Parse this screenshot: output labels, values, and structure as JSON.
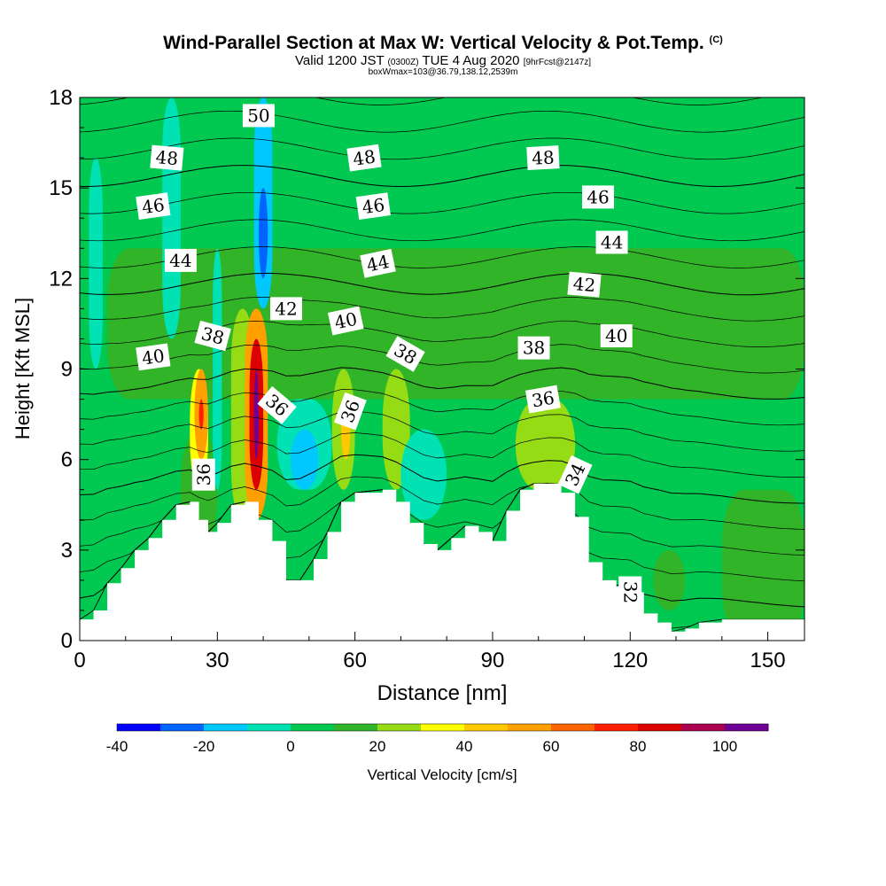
{
  "title": {
    "main": "Wind-Parallel Section at Max W: Vertical Velocity & Pot.Temp.",
    "copyright": "(C)",
    "valid_prefix": "Valid 1200 JST",
    "utc": "(0300Z)",
    "valid_suffix": "TUE 4 Aug 2020",
    "forecast": "[9hrFcst@2147z]",
    "box": "boxWmax=103@36.79,138.12,2539m"
  },
  "chart_data": {
    "type": "heatmap",
    "xlabel": "Distance [nm]",
    "ylabel": "Height [Kft MSL]",
    "xlim": [
      0,
      158
    ],
    "ylim": [
      0,
      18
    ],
    "x_ticks": [
      "0",
      "30",
      "60",
      "90",
      "120",
      "150"
    ],
    "y_ticks": [
      "0",
      "3",
      "6",
      "9",
      "12",
      "15",
      "18"
    ],
    "colorbar": {
      "label": "Vertical Velocity [cm/s]",
      "min": -40,
      "max": 110,
      "step": 10,
      "tick_labels": [
        "-40",
        "-20",
        "0",
        "20",
        "40",
        "60",
        "80",
        "100"
      ],
      "colors": [
        "#0000ff",
        "#0064ff",
        "#00c8ff",
        "#00e1b4",
        "#00c850",
        "#32b428",
        "#96dc14",
        "#ffff00",
        "#ffc800",
        "#ffa000",
        "#ff6400",
        "#ff1e00",
        "#dc0000",
        "#aa0050",
        "#6e0096"
      ]
    },
    "background_velocity_cm_s": 5,
    "velocity_cells": [
      {
        "x": [
          0,
          158
        ],
        "y": [
          7.5,
          18
        ],
        "w": 0
      },
      {
        "x": [
          6,
          158
        ],
        "y": [
          8,
          13
        ],
        "w": 10
      },
      {
        "x": [
          2,
          5
        ],
        "y": [
          9,
          16
        ],
        "w": -10
      },
      {
        "x": [
          12,
          20
        ],
        "y": [
          8,
          9
        ],
        "w": 10
      },
      {
        "x": [
          18,
          22
        ],
        "y": [
          10,
          18
        ],
        "w": -10
      },
      {
        "x": [
          22,
          30
        ],
        "y": [
          3,
          7
        ],
        "w": 10
      },
      {
        "x": [
          24,
          28
        ],
        "y": [
          5,
          9
        ],
        "w": 30
      },
      {
        "x": [
          25,
          28
        ],
        "y": [
          6,
          9
        ],
        "w": 50
      },
      {
        "x": [
          26,
          27
        ],
        "y": [
          7,
          8
        ],
        "w": 70
      },
      {
        "x": [
          29,
          31
        ],
        "y": [
          5,
          13
        ],
        "w": -10
      },
      {
        "x": [
          33,
          38
        ],
        "y": [
          4,
          11
        ],
        "w": 20
      },
      {
        "x": [
          36,
          41
        ],
        "y": [
          4,
          11
        ],
        "w": 50
      },
      {
        "x": [
          37,
          40
        ],
        "y": [
          5,
          10
        ],
        "w": 80
      },
      {
        "x": [
          38,
          39
        ],
        "y": [
          6,
          9
        ],
        "w": 100
      },
      {
        "x": [
          38,
          42
        ],
        "y": [
          11,
          18
        ],
        "w": -20
      },
      {
        "x": [
          39,
          41
        ],
        "y": [
          12,
          15
        ],
        "w": -30
      },
      {
        "x": [
          43,
          55
        ],
        "y": [
          5,
          8
        ],
        "w": -10
      },
      {
        "x": [
          46,
          52
        ],
        "y": [
          5,
          7
        ],
        "w": -20
      },
      {
        "x": [
          55,
          60
        ],
        "y": [
          5,
          9
        ],
        "w": 20
      },
      {
        "x": [
          57,
          59
        ],
        "y": [
          6,
          8
        ],
        "w": 40
      },
      {
        "x": [
          66,
          72
        ],
        "y": [
          5,
          9
        ],
        "w": 20
      },
      {
        "x": [
          70,
          80
        ],
        "y": [
          4,
          7
        ],
        "w": -10
      },
      {
        "x": [
          95,
          108
        ],
        "y": [
          5,
          8
        ],
        "w": 20
      },
      {
        "x": [
          120,
          158
        ],
        "y": [
          0,
          5
        ],
        "w": 0
      },
      {
        "x": [
          140,
          158
        ],
        "y": [
          0,
          5
        ],
        "w": 10
      },
      {
        "x": [
          125,
          132
        ],
        "y": [
          1,
          3
        ],
        "w": 10
      }
    ],
    "terrain_kft": [
      [
        0,
        0.7
      ],
      [
        3,
        1.0
      ],
      [
        6,
        1.9
      ],
      [
        9,
        2.4
      ],
      [
        12,
        3.0
      ],
      [
        15,
        3.4
      ],
      [
        18,
        4.0
      ],
      [
        21,
        4.5
      ],
      [
        24,
        4.6
      ],
      [
        26,
        4.0
      ],
      [
        28,
        3.6
      ],
      [
        30,
        3.9
      ],
      [
        33,
        4.5
      ],
      [
        36,
        4.6
      ],
      [
        39,
        4.0
      ],
      [
        42,
        3.3
      ],
      [
        45,
        2.0
      ],
      [
        48,
        2.0
      ],
      [
        51,
        2.7
      ],
      [
        54,
        3.6
      ],
      [
        57,
        4.6
      ],
      [
        60,
        4.9
      ],
      [
        66,
        5.0
      ],
      [
        69,
        4.6
      ],
      [
        72,
        3.9
      ],
      [
        75,
        3.2
      ],
      [
        78,
        3.0
      ],
      [
        81,
        3.4
      ],
      [
        84,
        3.8
      ],
      [
        87,
        3.6
      ],
      [
        90,
        3.3
      ],
      [
        93,
        4.3
      ],
      [
        96,
        5.0
      ],
      [
        99,
        5.2
      ],
      [
        102,
        5.2
      ],
      [
        105,
        4.9
      ],
      [
        108,
        4.1
      ],
      [
        111,
        2.6
      ],
      [
        114,
        2.0
      ],
      [
        117,
        1.8
      ],
      [
        120,
        1.6
      ],
      [
        123,
        0.9
      ],
      [
        126,
        0.6
      ],
      [
        129,
        0.3
      ],
      [
        132,
        0.4
      ],
      [
        135,
        0.6
      ],
      [
        140,
        0.7
      ],
      [
        150,
        0.7
      ],
      [
        158,
        0.7
      ]
    ],
    "isentrope_levels": [
      {
        "level": 32,
        "label": "32"
      },
      {
        "level": 34,
        "label": "34"
      },
      {
        "level": 36,
        "label": "36"
      },
      {
        "level": 38,
        "label": "38"
      },
      {
        "level": 40,
        "label": "40"
      },
      {
        "level": 42,
        "label": "42"
      },
      {
        "level": 44,
        "label": "44"
      },
      {
        "level": 46,
        "label": "46"
      },
      {
        "level": 48,
        "label": "48"
      },
      {
        "level": 50,
        "label": "50"
      }
    ],
    "contour_labels": [
      {
        "text": "50",
        "x": 39,
        "y": 17.4,
        "angle": 0
      },
      {
        "text": "48",
        "x": 19,
        "y": 16.0,
        "angle": 5
      },
      {
        "text": "48",
        "x": 62,
        "y": 16.0,
        "angle": -8
      },
      {
        "text": "48",
        "x": 101,
        "y": 16.0,
        "angle": -3
      },
      {
        "text": "46",
        "x": 16,
        "y": 14.4,
        "angle": -8
      },
      {
        "text": "46",
        "x": 64,
        "y": 14.4,
        "angle": -8
      },
      {
        "text": "46",
        "x": 113,
        "y": 14.7,
        "angle": 0
      },
      {
        "text": "44",
        "x": 22,
        "y": 12.6,
        "angle": 0
      },
      {
        "text": "44",
        "x": 65,
        "y": 12.5,
        "angle": -12
      },
      {
        "text": "44",
        "x": 116,
        "y": 13.2,
        "angle": 0
      },
      {
        "text": "42",
        "x": 45,
        "y": 11.0,
        "angle": 0
      },
      {
        "text": "42",
        "x": 110,
        "y": 11.8,
        "angle": 5
      },
      {
        "text": "40",
        "x": 16,
        "y": 9.4,
        "angle": -8
      },
      {
        "text": "40",
        "x": 58,
        "y": 10.6,
        "angle": -12
      },
      {
        "text": "40",
        "x": 117,
        "y": 10.1,
        "angle": 0
      },
      {
        "text": "38",
        "x": 29,
        "y": 10.1,
        "angle": 15
      },
      {
        "text": "38",
        "x": 71,
        "y": 9.5,
        "angle": 30
      },
      {
        "text": "38",
        "x": 99,
        "y": 9.7,
        "angle": 0
      },
      {
        "text": "36",
        "x": 43,
        "y": 7.8,
        "angle": 40
      },
      {
        "text": "36",
        "x": 59,
        "y": 7.6,
        "angle": -70
      },
      {
        "text": "36",
        "x": 101,
        "y": 8.0,
        "angle": -10
      },
      {
        "text": "36",
        "x": 27,
        "y": 5.5,
        "angle": -90
      },
      {
        "text": "34",
        "x": 108,
        "y": 5.5,
        "angle": -65
      },
      {
        "text": "32",
        "x": 120,
        "y": 1.6,
        "angle": 90
      }
    ]
  }
}
